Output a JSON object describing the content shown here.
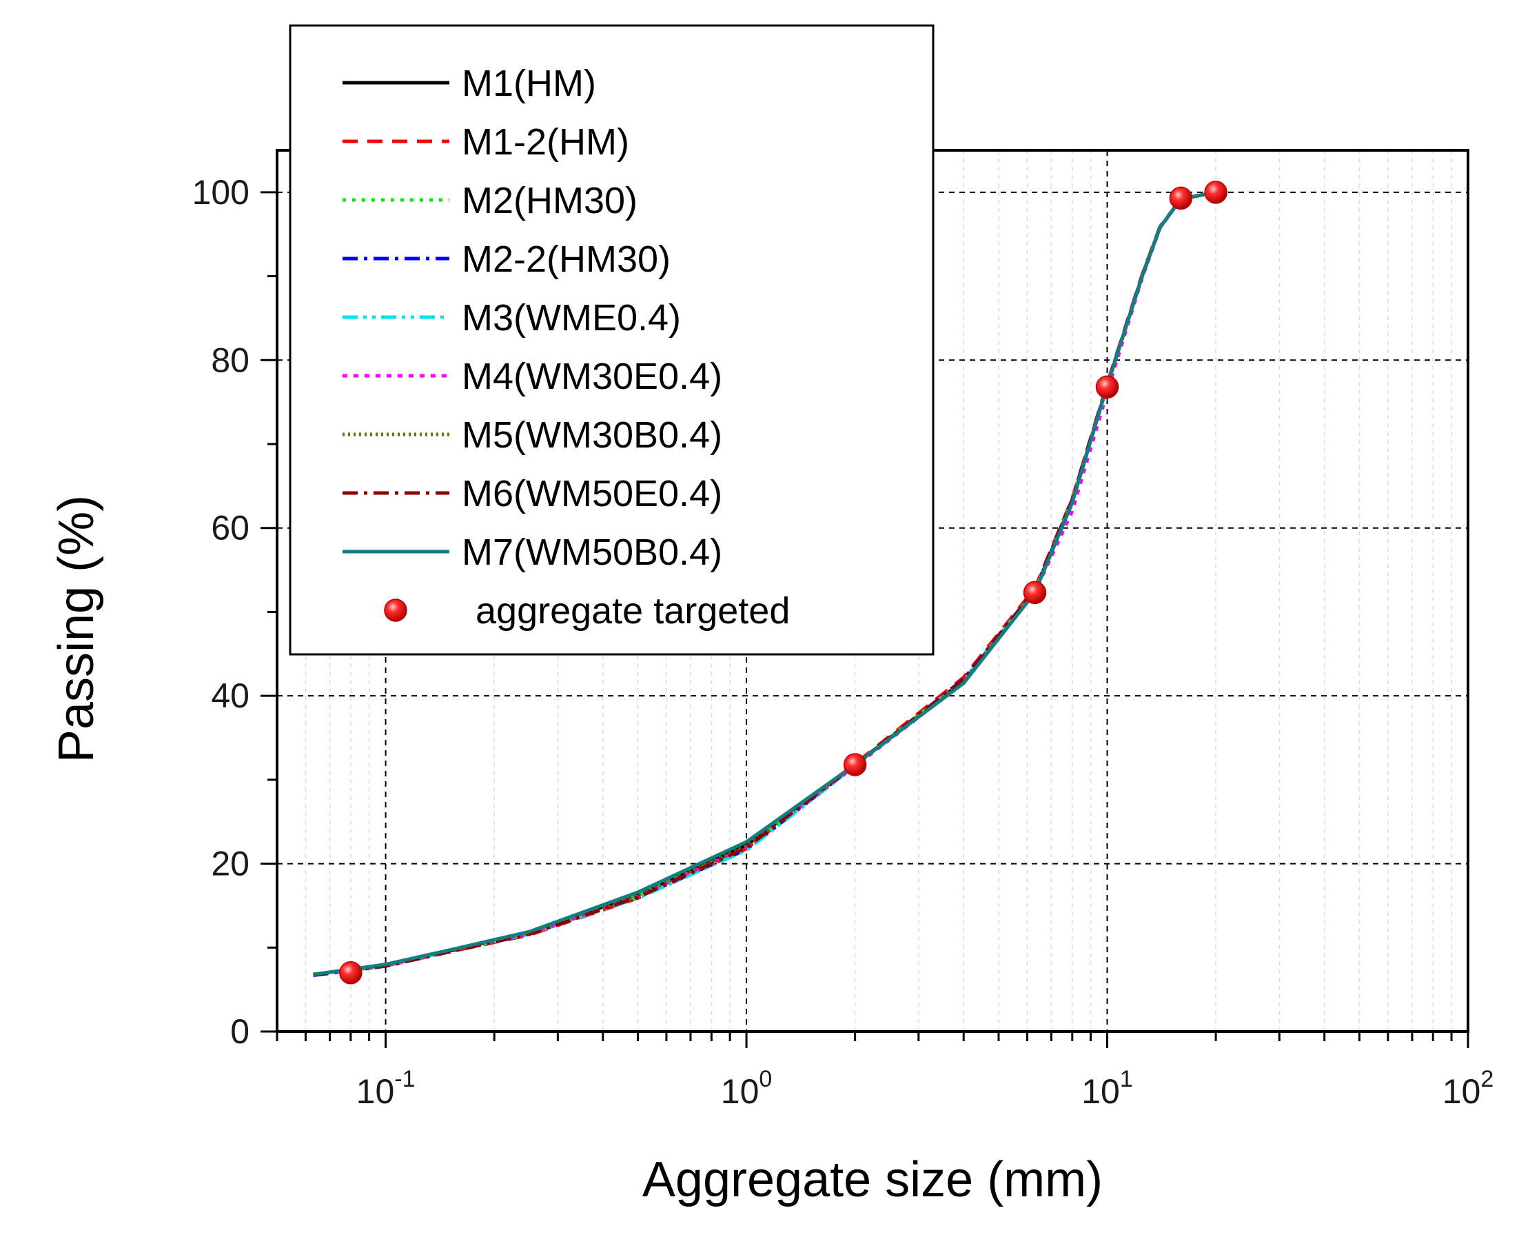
{
  "chart_data": {
    "type": "line",
    "title": "",
    "xlabel": "Aggregate size (mm)",
    "ylabel": "Passing (%)",
    "xscale": "log",
    "xlim": [
      0.05,
      100
    ],
    "ylim": [
      0,
      105
    ],
    "grid": true,
    "legend_position": "top-left",
    "x_ticks": [
      {
        "value": 0.1,
        "base": "10",
        "exp": "-1"
      },
      {
        "value": 1,
        "base": "10",
        "exp": "0"
      },
      {
        "value": 10,
        "base": "10",
        "exp": "1"
      },
      {
        "value": 100,
        "base": "10",
        "exp": "2"
      }
    ],
    "y_ticks": [
      0,
      20,
      40,
      60,
      80,
      100
    ],
    "x": [
      0.063,
      0.1,
      0.15,
      0.25,
      0.5,
      1,
      2,
      4,
      6.3,
      8,
      10,
      12.5,
      14,
      16,
      20
    ],
    "series": [
      {
        "name": "M1(HM)",
        "color": "#000000",
        "dash": "none",
        "values": [
          6.8,
          7.9,
          9.6,
          11.8,
          16.3,
          22.2,
          31.8,
          41.8,
          52.5,
          63.2,
          77.0,
          90.0,
          95.8,
          99.2,
          100
        ]
      },
      {
        "name": "M1-2(HM)",
        "color": "#ff0000",
        "dash": "dash",
        "values": [
          6.8,
          7.8,
          9.5,
          11.5,
          15.9,
          21.8,
          31.9,
          42.2,
          52.8,
          63.5,
          77.2,
          90.2,
          95.9,
          99.2,
          100
        ]
      },
      {
        "name": "M2(HM30)",
        "color": "#00ee00",
        "dash": "dot",
        "values": [
          6.8,
          7.9,
          9.6,
          11.7,
          16.2,
          22.0,
          31.8,
          41.9,
          52.5,
          63.3,
          77.0,
          90.0,
          95.8,
          99.2,
          100
        ]
      },
      {
        "name": "M2-2(HM30)",
        "color": "#0000ff",
        "dash": "dashdot",
        "values": [
          6.7,
          7.8,
          9.5,
          11.6,
          16.0,
          21.7,
          31.7,
          42.0,
          52.6,
          63.4,
          77.1,
          90.1,
          95.8,
          99.2,
          100
        ]
      },
      {
        "name": "M3(WME0.4)",
        "color": "#00e5ee",
        "dash": "dashdotdot",
        "values": [
          6.8,
          7.8,
          9.6,
          11.6,
          15.9,
          21.6,
          31.6,
          41.8,
          52.5,
          63.0,
          76.9,
          90.0,
          95.8,
          99.2,
          100
        ]
      },
      {
        "name": "M4(WM30E0.4)",
        "color": "#ff00ff",
        "dash": "shortdot",
        "values": [
          6.8,
          7.9,
          9.5,
          11.6,
          16.1,
          22.0,
          31.6,
          41.6,
          52.3,
          62.0,
          76.2,
          89.8,
          95.7,
          99.2,
          100
        ]
      },
      {
        "name": "M5(WM30B0.4)",
        "color": "#6b6b00",
        "dash": "finedot",
        "values": [
          6.8,
          7.9,
          9.6,
          11.7,
          16.2,
          22.1,
          31.7,
          41.8,
          52.5,
          63.1,
          76.9,
          90.0,
          95.8,
          99.2,
          100
        ]
      },
      {
        "name": "M6(WM50E0.4)",
        "color": "#8b0000",
        "dash": "dashdot",
        "values": [
          6.8,
          7.8,
          9.5,
          11.6,
          16.0,
          21.9,
          31.8,
          41.9,
          52.6,
          63.3,
          77.0,
          90.1,
          95.8,
          99.2,
          100
        ]
      },
      {
        "name": "M7(WM50B0.4)",
        "color": "#0f7f7f",
        "dash": "none",
        "values": [
          6.8,
          8.0,
          9.7,
          11.9,
          16.6,
          22.6,
          31.8,
          41.5,
          52.3,
          63.0,
          77.0,
          90.0,
          95.8,
          99.2,
          100
        ]
      }
    ],
    "targeted": {
      "name": "aggregate targeted",
      "color": "#ff0000",
      "x": [
        0.08,
        2,
        6.3,
        10,
        16,
        20
      ],
      "y": [
        7,
        31.8,
        52.3,
        76.8,
        99.3,
        100
      ]
    }
  }
}
